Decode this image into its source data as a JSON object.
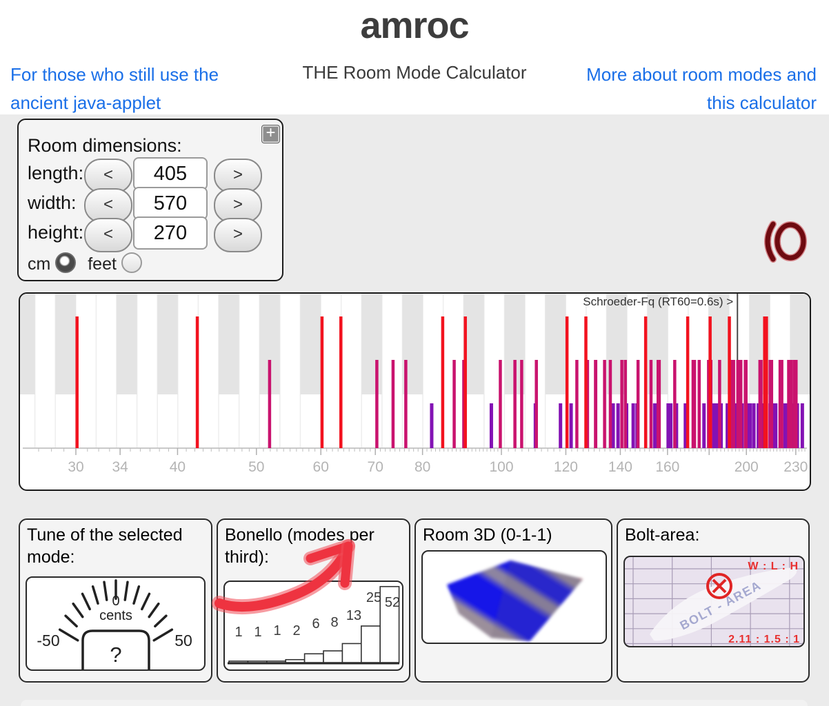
{
  "header": {
    "title": "amroc",
    "subtitle": "THE Room Mode Calculator",
    "left_link": "For those who still use the ancient java-applet",
    "right_link": "More about room modes and this calculator"
  },
  "room_dimensions": {
    "title": "Room dimensions:",
    "expand_button": "+",
    "fields": [
      {
        "label": "length:",
        "value": "405",
        "dec": "<",
        "inc": ">"
      },
      {
        "label": "width:",
        "value": "570",
        "dec": "<",
        "inc": ">"
      },
      {
        "label": "height:",
        "value": "270",
        "dec": "<",
        "inc": ">"
      }
    ],
    "units": [
      {
        "label": "cm",
        "selected": true
      },
      {
        "label": "feet",
        "selected": false
      }
    ]
  },
  "mode_chart": {
    "schroeder_label": "Schroeder-Fq (RT60=0.6s) >",
    "schroeder_freq": 195,
    "freq_min": 26,
    "freq_max": 237,
    "labeled_ticks": [
      30,
      34,
      40,
      50,
      60,
      70,
      80,
      100,
      120,
      140,
      160,
      200,
      230
    ],
    "major_ticks": [
      30,
      34,
      40,
      50,
      60,
      70,
      80,
      100,
      120,
      140,
      160,
      180,
      200,
      230
    ],
    "piano_black_keys": [
      25.96,
      29.14,
      34.65,
      38.89,
      46.25,
      51.91,
      58.27,
      69.3,
      77.78,
      92.5,
      103.83,
      116.54,
      138.59,
      155.56,
      185.0,
      207.65,
      233.08
    ],
    "colors": {
      "axial": "#f2121f",
      "tangential": "#c9136e",
      "oblique": "#8312b4",
      "schroeder_line": "#4a4a4a"
    },
    "modes": {
      "axial": [
        30.1,
        42.3,
        60.2,
        63.5,
        84.7,
        90.3,
        120.4,
        127.0,
        150.4,
        169.4,
        180.5,
        190.6,
        210.6,
        211.7
      ],
      "tangential": [
        51.9,
        70.3,
        73.6,
        76.3,
        87.5,
        89.9,
        99.7,
        103.9,
        105.9,
        110.4,
        123.8,
        127.6,
        130.5,
        130.6,
        133.9,
        136.1,
        140.6,
        142.0,
        147.2,
        152.7,
        155.8,
        156.3,
        163.3,
        172.0,
        172.7,
        175.0,
        179.7,
        179.8,
        180.9,
        185.4,
        191.4,
        191.9,
        192.9,
        195.2,
        196.9,
        199.4,
        199.8,
        207.8,
        208.5,
        210.8,
        213.9,
        214.8,
        220.0,
        220.1,
        220.7,
        221.1,
        225.4,
        226.6,
        227.0,
        229.0,
        230.2
      ],
      "oblique": [
        82.1,
        97.2,
        110.1,
        118.2,
        121.8,
        137.2,
        139.1,
        142.5,
        145.2,
        146.8,
        154.3,
        155.6,
        160.3,
        161.5,
        164.1,
        168.3,
        168.7,
        177.4,
        180.0,
        182.2,
        183.4,
        184.0,
        186.2,
        189.5,
        190.6,
        194.4,
        196.0,
        197.5,
        201.1,
        201.4,
        202.2,
        204.3,
        206.9,
        209.3,
        210.7,
        213.9,
        215.1,
        216.2,
        217.0,
        217.3,
        220.1,
        223.1,
        224.0,
        224.8,
        227.2,
        229.1,
        229.3,
        229.7,
        230.2,
        231.0,
        234.3
      ]
    }
  },
  "panels": {
    "tune": {
      "title": "Tune of the selected mode:",
      "gauge": {
        "top_value": "0",
        "unit": "cents",
        "min_label": "-50",
        "max_label": "50",
        "value": "?"
      }
    },
    "bonello": {
      "title": "Bonello (modes per third):",
      "chart_data": {
        "type": "bar",
        "values": [
          1,
          1,
          1,
          2,
          6,
          8,
          13,
          25,
          52
        ],
        "labels": [
          "1",
          "1",
          "1",
          "2",
          "6",
          "8",
          "13",
          "25",
          "52"
        ]
      }
    },
    "room3d": {
      "title": "Room 3D (0-1-1)"
    },
    "bolt": {
      "title": "Bolt-area:",
      "ratio_header": "W : L : H",
      "ratio_value": "2.11 : 1.5 : 1",
      "area_label": "BOLT - AREA"
    }
  }
}
